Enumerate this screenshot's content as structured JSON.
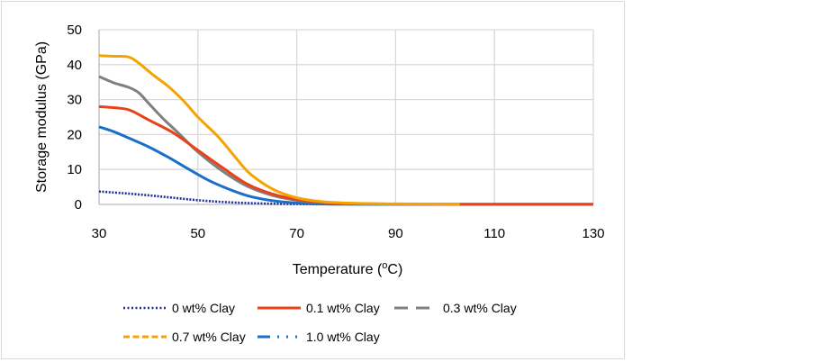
{
  "chart_data": {
    "type": "line",
    "title": "",
    "xlabel": "Temperature (",
    "xlabel_sup": "o",
    "xlabel_end": "C)",
    "ylabel": "Storage modulus (GPa)",
    "xlim": [
      30,
      130
    ],
    "ylim": [
      0,
      50
    ],
    "xticks": [
      30,
      50,
      70,
      90,
      110,
      130
    ],
    "yticks": [
      0,
      10,
      20,
      30,
      40,
      50
    ],
    "xtick_labels": [
      "30",
      "50",
      "70",
      "90",
      "110",
      "130"
    ],
    "ytick_labels": [
      "0",
      "10",
      "20",
      "30",
      "40",
      "50"
    ],
    "grid": true,
    "legend_position": "bottom",
    "series": [
      {
        "name": "0 wt% Clay",
        "color": "#1f2d9c",
        "style": "dotted",
        "x": [
          30,
          35,
          40,
          45,
          50,
          55,
          60,
          65,
          70,
          75,
          80,
          90,
          100,
          110,
          120,
          130
        ],
        "y": [
          3.7,
          3.2,
          2.6,
          1.9,
          1.2,
          0.7,
          0.4,
          0.2,
          0.1,
          0.05,
          0.03,
          0.02,
          0.01,
          0.01,
          0.01,
          0.01
        ]
      },
      {
        "name": "0.1 wt% Clay",
        "color": "#e8421a",
        "style": "solid",
        "x": [
          30,
          35,
          37,
          40,
          45,
          50,
          55,
          60,
          65,
          70,
          75,
          80,
          90,
          100,
          110,
          120,
          130
        ],
        "y": [
          28.0,
          27.4,
          26.5,
          24.2,
          20.5,
          15.5,
          10.5,
          5.8,
          3.0,
          1.4,
          0.6,
          0.3,
          0.1,
          0.05,
          0.03,
          0.02,
          0.02
        ]
      },
      {
        "name": "0.3 wt% Clay",
        "color": "#808080",
        "style": "dashed",
        "x": [
          30,
          33,
          36,
          38,
          40,
          43,
          46,
          50,
          55,
          60,
          65,
          70,
          75,
          80,
          90,
          100,
          110,
          120,
          130
        ],
        "y": [
          36.6,
          34.8,
          33.5,
          32.0,
          29.0,
          24.5,
          20.5,
          15.0,
          9.5,
          5.2,
          2.6,
          1.2,
          0.5,
          0.2,
          0.08,
          0.04,
          0.03,
          0.02,
          0.02
        ]
      },
      {
        "name": "0.7 wt% Clay",
        "color": "#f5a300",
        "style": "dashed",
        "x": [
          30,
          33,
          36,
          38,
          41,
          44,
          47,
          50,
          54,
          57,
          60,
          63,
          66,
          70,
          75,
          80,
          90,
          103
        ],
        "y": [
          42.6,
          42.4,
          42.2,
          40.5,
          37.0,
          33.8,
          29.8,
          25.0,
          19.5,
          14.5,
          9.5,
          6.2,
          3.8,
          1.9,
          0.8,
          0.4,
          0.15,
          0.1
        ]
      },
      {
        "name": "1.0 wt% Clay",
        "color": "#1a6fc9",
        "style": "dashdot",
        "x": [
          30,
          33,
          36,
          40,
          44,
          48,
          52,
          56,
          60,
          64,
          68,
          72,
          76,
          80,
          90,
          100,
          110,
          120,
          130
        ],
        "y": [
          22.2,
          20.8,
          19.0,
          16.5,
          13.5,
          10.2,
          7.0,
          4.5,
          2.5,
          1.3,
          0.6,
          0.25,
          0.12,
          0.06,
          0.03,
          0.02,
          0.02,
          0.02,
          0.02
        ]
      }
    ]
  }
}
